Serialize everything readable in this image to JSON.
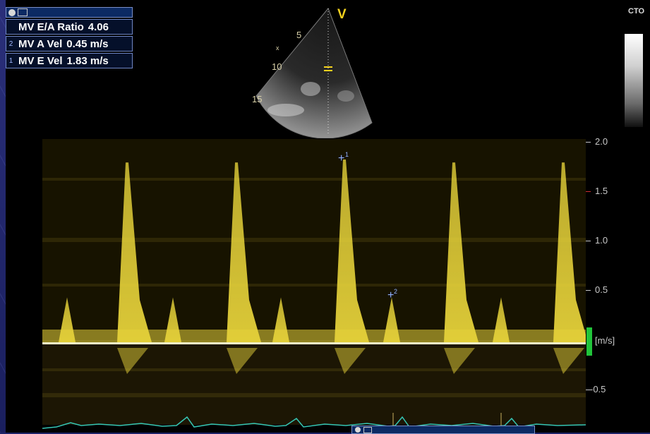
{
  "measurements": {
    "rows": [
      {
        "index": "",
        "label": "MV E/A Ratio",
        "value": "4.06"
      },
      {
        "index": "2",
        "label": "MV A Vel",
        "value": "0.45 m/s"
      },
      {
        "index": "1",
        "label": "MV E Vel",
        "value": "1.83 m/s"
      }
    ]
  },
  "sector": {
    "depth_marks": [
      "5",
      "10",
      "15"
    ],
    "probe_marker": "V",
    "focus_marker": "x"
  },
  "header": {
    "cto": "CTO"
  },
  "doppler": {
    "scale_labels": [
      "2.0",
      "1.5",
      "1.0",
      "0.5",
      "-0.5"
    ],
    "units": "[m/s]",
    "cursor_1": "1",
    "cursor_2": "2",
    "e_wave_peaks_m_s": [
      1.8,
      1.8,
      1.83,
      1.8,
      1.8
    ],
    "a_wave_peaks_m_s": [
      0.45,
      0.45,
      0.45,
      0.45
    ]
  },
  "colors": {
    "doppler": "#e6d23a",
    "baseline": "#f2f0c8",
    "panel_border": "#6f86c4",
    "label_yellow": "#f4d21e",
    "ecg": "#36c6b4",
    "velocity_marker": "#21c43a"
  }
}
